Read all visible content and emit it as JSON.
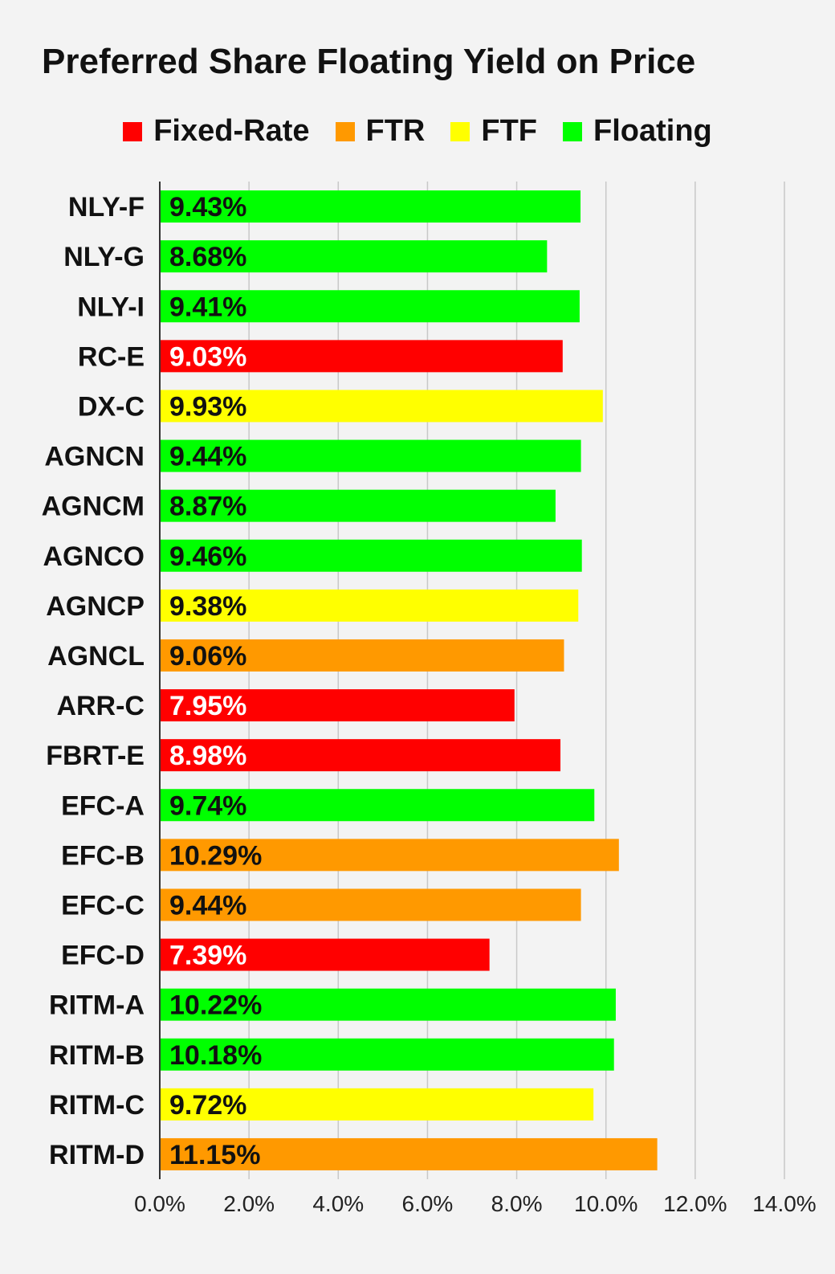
{
  "chart_data": {
    "type": "bar",
    "orientation": "horizontal",
    "title": "Preferred Share Floating Yield on Price",
    "legend": [
      {
        "name": "Fixed-Rate",
        "color": "#ff0000"
      },
      {
        "name": "FTR",
        "color": "#ff9900"
      },
      {
        "name": "FTF",
        "color": "#ffff00"
      },
      {
        "name": "Floating",
        "color": "#00ff00"
      }
    ],
    "legend_position": "top",
    "categories": [
      "NLY-F",
      "NLY-G",
      "NLY-I",
      "RC-E",
      "DX-C",
      "AGNCN",
      "AGNCM",
      "AGNCO",
      "AGNCP",
      "AGNCL",
      "ARR-C",
      "FBRT-E",
      "EFC-A",
      "EFC-B",
      "EFC-C",
      "EFC-D",
      "RITM-A",
      "RITM-B",
      "RITM-C",
      "RITM-D"
    ],
    "values": [
      9.43,
      8.68,
      9.41,
      9.03,
      9.93,
      9.44,
      8.87,
      9.46,
      9.38,
      9.06,
      7.95,
      8.98,
      9.74,
      10.29,
      9.44,
      7.39,
      10.22,
      10.18,
      9.72,
      11.15
    ],
    "value_labels": [
      "9.43%",
      "8.68%",
      "9.41%",
      "9.03%",
      "9.93%",
      "9.44%",
      "8.87%",
      "9.46%",
      "9.38%",
      "9.06%",
      "7.95%",
      "8.98%",
      "9.74%",
      "10.29%",
      "9.44%",
      "7.39%",
      "10.22%",
      "10.18%",
      "9.72%",
      "11.15%"
    ],
    "bar_types": [
      "Floating",
      "Floating",
      "Floating",
      "Fixed-Rate",
      "FTF",
      "Floating",
      "Floating",
      "Floating",
      "FTF",
      "FTR",
      "Fixed-Rate",
      "Fixed-Rate",
      "Floating",
      "FTR",
      "FTR",
      "Fixed-Rate",
      "Floating",
      "Floating",
      "FTF",
      "FTR"
    ],
    "x_ticks": [
      "0.0%",
      "2.0%",
      "4.0%",
      "6.0%",
      "8.0%",
      "10.0%",
      "12.0%",
      "14.0%"
    ],
    "xlim": [
      0,
      14
    ],
    "grid": true
  }
}
